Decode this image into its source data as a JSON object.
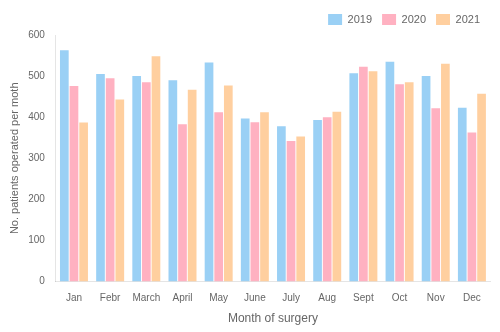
{
  "chart_data": {
    "type": "bar",
    "categories": [
      "Jan",
      "Febr",
      "March",
      "April",
      "May",
      "June",
      "July",
      "Aug",
      "Sept",
      "Oct",
      "Nov",
      "Dec"
    ],
    "series": [
      {
        "name": "2019",
        "values": [
          563,
          505,
          500,
          490,
          533,
          397,
          378,
          393,
          507,
          535,
          500,
          423
        ]
      },
      {
        "name": "2020",
        "values": [
          476,
          495,
          485,
          383,
          412,
          388,
          342,
          400,
          523,
          480,
          422,
          363
        ]
      },
      {
        "name": "2021",
        "values": [
          387,
          443,
          548,
          467,
          477,
          412,
          353,
          413,
          512,
          485,
          530,
          457
        ]
      }
    ],
    "xlabel": "Month of surgery",
    "ylabel": "No. patients operated per moth",
    "ylim": [
      0,
      600
    ],
    "yticks": [
      0,
      100,
      200,
      300,
      400,
      500,
      600
    ],
    "grid": false,
    "legend": "upper right"
  }
}
